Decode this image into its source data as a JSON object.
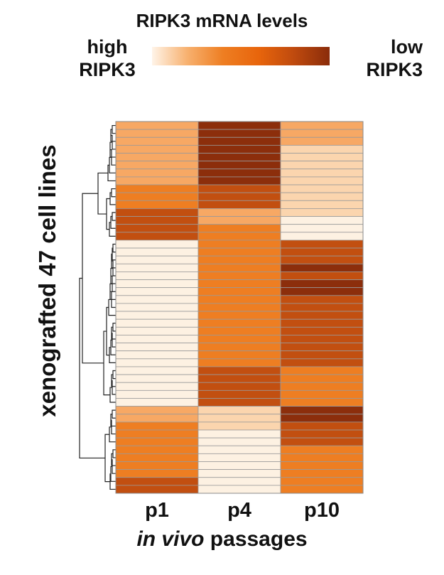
{
  "chart_data": {
    "type": "heatmap",
    "title": "RIPK3 mRNA levels",
    "legend": {
      "left_label_line1": "high",
      "left_label_line2": "RIPK3",
      "right_label_line1": "low",
      "right_label_line2": "RIPK3",
      "gradient_colors": [
        "#fff4e8",
        "#f7b06e",
        "#ee7e22",
        "#e8650c",
        "#bf4a0e",
        "#8a2c0a"
      ]
    },
    "ylabel": "xenografted 47 cell lines",
    "xlabel_italic": "in vivo",
    "xlabel_rest": " passages",
    "columns": [
      "p1",
      "p4",
      "p10"
    ],
    "level_scale": "0 = lightest (high RIPK3) ... 5 = darkest (low RIPK3)",
    "level_colors": [
      "#fdf1e2",
      "#fbd5ae",
      "#f7a864",
      "#ee7e22",
      "#c24f10",
      "#8c2e0b"
    ],
    "grid_color": "#9a9a9a",
    "rows": [
      [
        2,
        5,
        2
      ],
      [
        2,
        5,
        2
      ],
      [
        2,
        5,
        2
      ],
      [
        2,
        5,
        1
      ],
      [
        2,
        5,
        1
      ],
      [
        2,
        5,
        1
      ],
      [
        2,
        5,
        1
      ],
      [
        2,
        5,
        1
      ],
      [
        3,
        4,
        1
      ],
      [
        3,
        4,
        1
      ],
      [
        3,
        4,
        1
      ],
      [
        4,
        2,
        1
      ],
      [
        4,
        2,
        0
      ],
      [
        4,
        3,
        0
      ],
      [
        4,
        3,
        0
      ],
      [
        0,
        3,
        4
      ],
      [
        0,
        3,
        4
      ],
      [
        0,
        3,
        4
      ],
      [
        0,
        3,
        5
      ],
      [
        0,
        3,
        4
      ],
      [
        0,
        3,
        5
      ],
      [
        0,
        3,
        5
      ],
      [
        0,
        3,
        4
      ],
      [
        0,
        3,
        4
      ],
      [
        0,
        3,
        4
      ],
      [
        0,
        3,
        4
      ],
      [
        0,
        3,
        4
      ],
      [
        0,
        3,
        4
      ],
      [
        0,
        3,
        4
      ],
      [
        0,
        3,
        4
      ],
      [
        0,
        3,
        4
      ],
      [
        0,
        4,
        3
      ],
      [
        0,
        4,
        3
      ],
      [
        0,
        4,
        3
      ],
      [
        0,
        4,
        3
      ],
      [
        0,
        4,
        3
      ],
      [
        2,
        1,
        5
      ],
      [
        2,
        1,
        5
      ],
      [
        3,
        1,
        4
      ],
      [
        3,
        0,
        4
      ],
      [
        3,
        0,
        4
      ],
      [
        3,
        0,
        3
      ],
      [
        3,
        0,
        3
      ],
      [
        3,
        0,
        3
      ],
      [
        3,
        0,
        3
      ],
      [
        4,
        0,
        3
      ],
      [
        4,
        0,
        3
      ]
    ]
  }
}
